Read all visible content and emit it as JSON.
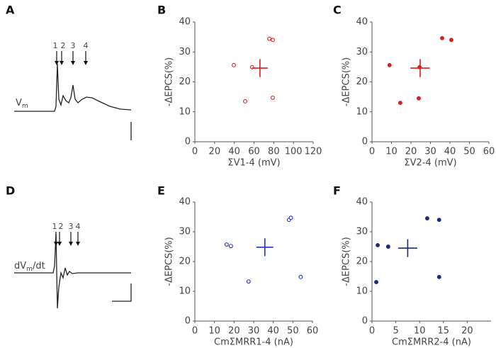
{
  "chart_data": [
    {
      "type": "trace",
      "panel": "A",
      "arrow_labels": [
        "1",
        "2",
        "3",
        "4"
      ],
      "trace_label": "V",
      "trace_label_sub": "m"
    },
    {
      "type": "scatter",
      "panel": "B",
      "x_label": "ΣV1-4 (mV)",
      "y_label": "-ΔEPCS(%)",
      "xlim": [
        0,
        120
      ],
      "xticks": [
        0,
        20,
        40,
        60,
        80,
        100,
        120
      ],
      "ylim": [
        0,
        40
      ],
      "yticks": [
        0,
        10,
        20,
        30,
        40
      ],
      "marker": "open",
      "series": [
        {
          "color": "#d42020",
          "x": [
            39.5,
            51,
            58,
            75.5,
            79,
            79
          ],
          "values": [
            25.6,
            13.5,
            24.9,
            34.4,
            34,
            14.7
          ]
        }
      ],
      "mean": {
        "x": 66,
        "y": 24.6,
        "xerr": 8,
        "yerr": 3
      }
    },
    {
      "type": "scatter",
      "panel": "C",
      "x_label": "ΣV2-4 (mV)",
      "y_label": "-ΔEPCS(%)",
      "xlim": [
        0,
        60
      ],
      "xticks": [
        0,
        10,
        20,
        30,
        40,
        50,
        60
      ],
      "ylim": [
        0,
        40
      ],
      "yticks": [
        0,
        10,
        20,
        30,
        40
      ],
      "marker": "filled",
      "series": [
        {
          "color": "#d42020",
          "x": [
            9,
            14.5,
            24.4,
            24,
            36,
            40.7
          ],
          "values": [
            25.6,
            13,
            24.9,
            14.5,
            34.6,
            34
          ]
        }
      ],
      "mean": {
        "x": 24.7,
        "y": 24.6,
        "xerr": 5,
        "yerr": 3
      }
    },
    {
      "type": "trace",
      "panel": "D",
      "arrow_labels": [
        "1",
        "2",
        "3",
        "4"
      ],
      "trace_label": "dV",
      "trace_label_sub": "m",
      "trace_label_end": "/dt"
    },
    {
      "type": "scatter",
      "panel": "E",
      "x_label": "CmΣMRR1-4 (nA)",
      "y_label": "-ΔEPCS(%)",
      "xlim": [
        0,
        60
      ],
      "xticks": [
        0,
        10,
        20,
        30,
        40,
        50,
        60
      ],
      "ylim": [
        0,
        40
      ],
      "yticks": [
        0,
        10,
        20,
        30,
        40
      ],
      "marker": "open",
      "series": [
        {
          "color": "#2030c0",
          "x": [
            16.2,
            18.4,
            27.4,
            48,
            49,
            54
          ],
          "values": [
            25.7,
            25.2,
            13.3,
            34,
            34.7,
            14.8
          ]
        }
      ],
      "mean": {
        "x": 35.7,
        "y": 24.8,
        "xerr": 4.3,
        "yerr": 3
      }
    },
    {
      "type": "scatter",
      "panel": "F",
      "x_label": "CmΣMRR2-4 (nA)",
      "y_label": "-ΔEPCS(%)",
      "xlim": [
        0,
        25
      ],
      "xticks": [
        0,
        5,
        10,
        15,
        20
      ],
      "ylim": [
        0,
        40
      ],
      "yticks": [
        0,
        10,
        20,
        30,
        40
      ],
      "marker": "filled",
      "series": [
        {
          "color": "#1a2a80",
          "x": [
            0.9,
            1.2,
            3.4,
            11.6,
            14.1,
            14.1
          ],
          "values": [
            13.1,
            25.5,
            25,
            34.5,
            34,
            14.8
          ]
        }
      ],
      "mean": {
        "x": 7.5,
        "y": 24.5,
        "xerr": 2,
        "yerr": 3
      }
    }
  ]
}
